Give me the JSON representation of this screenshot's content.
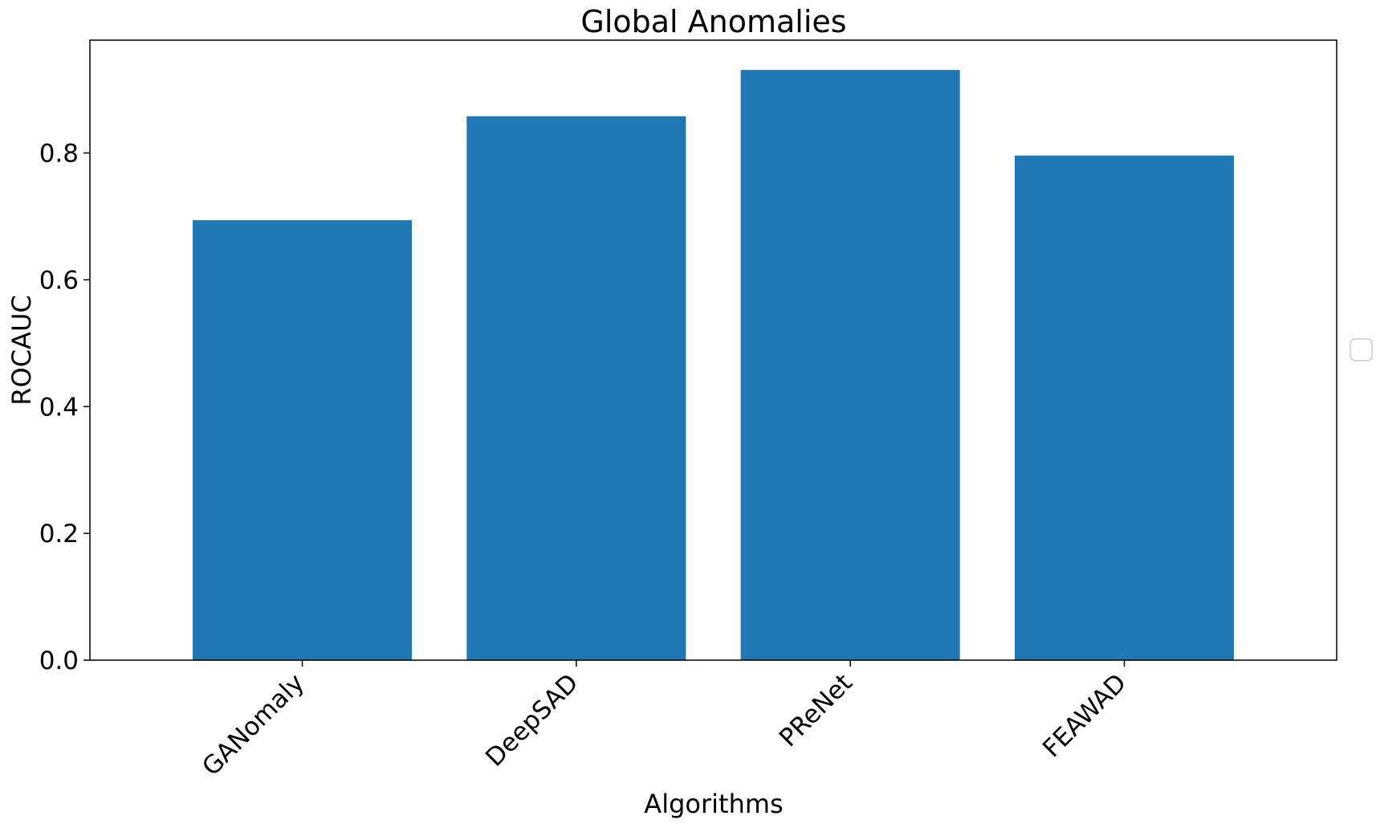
{
  "chart_data": {
    "type": "bar",
    "title": "Global Anomalies",
    "xlabel": "Algorithms",
    "ylabel": "ROCAUC",
    "categories": [
      "GANomaly",
      "DeepSAD",
      "PReNet",
      "FEAWAD"
    ],
    "values": [
      0.694,
      0.858,
      0.931,
      0.796
    ],
    "ylim": [
      0,
      0.978
    ],
    "yticks": [
      0.0,
      0.2,
      0.4,
      0.6,
      0.8
    ],
    "ytick_labels": [
      "0.0",
      "0.2",
      "0.4",
      "0.6",
      "0.8"
    ],
    "grid": false,
    "legend": "right, empty",
    "bar_color": "#1f77b4"
  }
}
